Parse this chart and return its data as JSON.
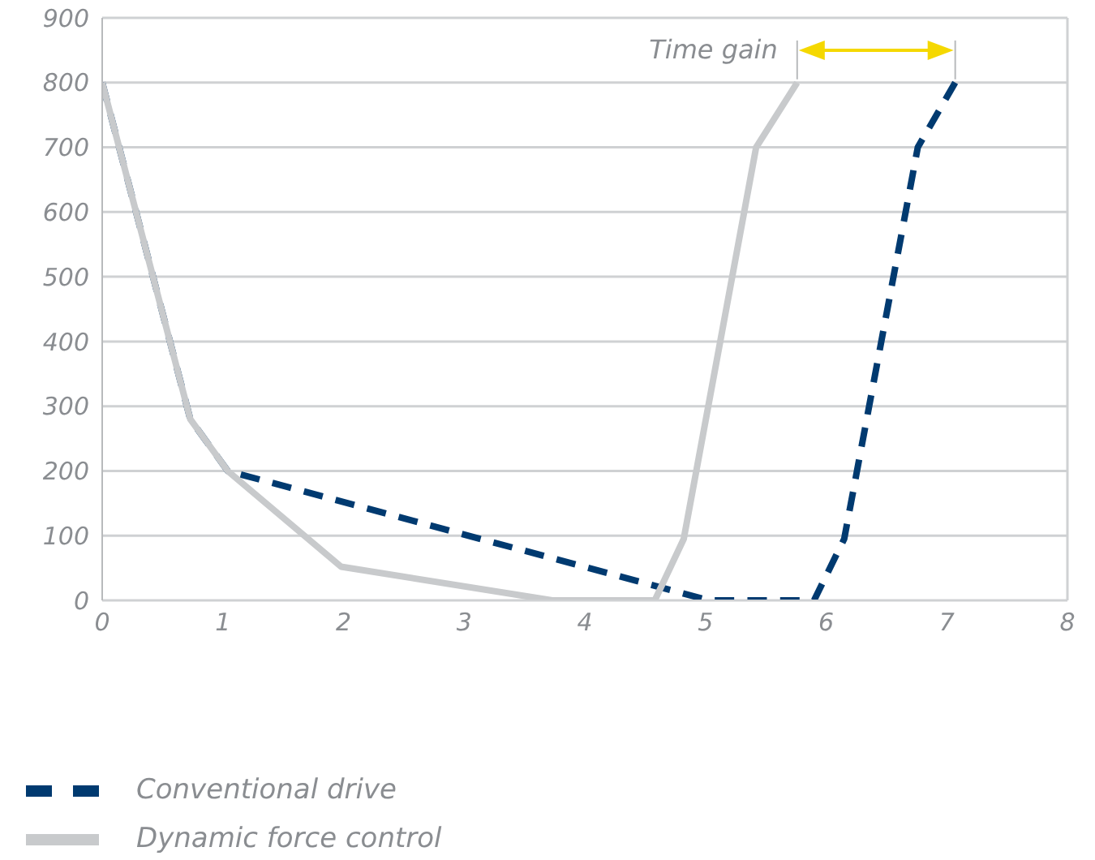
{
  "chart_data": {
    "type": "line",
    "xlim": [
      0,
      8
    ],
    "xticks": [
      0,
      1,
      2,
      3,
      4,
      5,
      6,
      7,
      8
    ],
    "ylim": [
      0,
      900
    ],
    "yticks": [
      0,
      100,
      200,
      300,
      400,
      500,
      600,
      700,
      800,
      900
    ],
    "grid": "y",
    "legend": "bottom",
    "series": [
      {
        "name": "Conventional drive",
        "color": "#003a70",
        "line_style": "dashed",
        "x": [
          0,
          0.73,
          1.04,
          5.03,
          5.9,
          6.15,
          6.76,
          7.07
        ],
        "values": [
          800,
          280,
          200,
          0,
          0,
          95,
          700,
          800
        ]
      },
      {
        "name": "Dynamic force control",
        "color": "#c8cacc",
        "line_style": "solid",
        "x": [
          0,
          0.73,
          1.04,
          1.98,
          3.73,
          4.58,
          4.82,
          5.42,
          5.76
        ],
        "values": [
          800,
          280,
          200,
          52,
          0,
          0,
          95,
          700,
          800
        ]
      }
    ],
    "annotations": [
      "Time gain"
    ]
  }
}
